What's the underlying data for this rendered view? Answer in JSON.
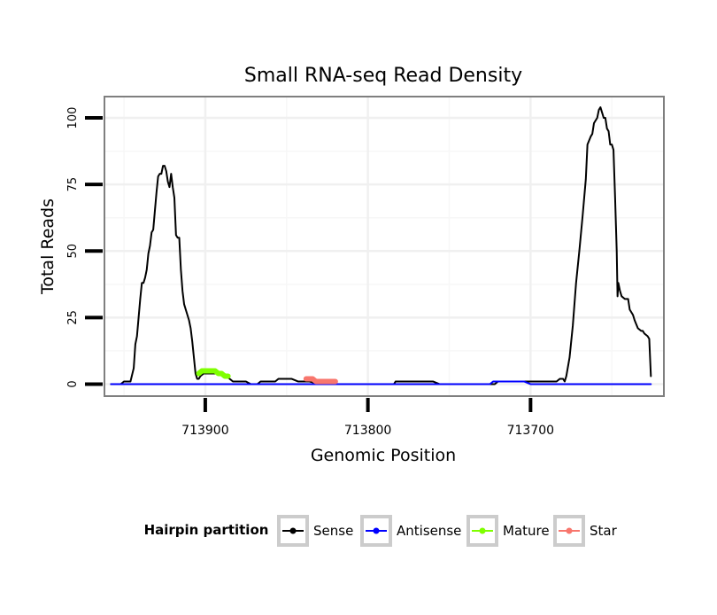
{
  "chart_data": {
    "type": "line",
    "title": "Small RNA-seq Read Density",
    "xlabel": "Genomic Position",
    "ylabel": "Total Reads",
    "xlim": [
      713962,
      713618
    ],
    "ylim": [
      -4.5,
      108
    ],
    "x_ticks": [
      713900,
      713800,
      713700
    ],
    "x_tick_labels": [
      "713900",
      "713800",
      "713700"
    ],
    "y_ticks": [
      0,
      25,
      50,
      75,
      100
    ],
    "y_tick_labels": [
      "0",
      "25",
      "50",
      "75",
      "100"
    ],
    "grid": true,
    "legend_title": "Hairpin partition",
    "legend_position": "bottom",
    "series": [
      {
        "name": "Sense",
        "color": "#000000",
        "points": [
          [
            713958,
            0
          ],
          [
            713952,
            0
          ],
          [
            713950,
            1
          ],
          [
            713946,
            1
          ],
          [
            713944,
            6
          ],
          [
            713943,
            15
          ],
          [
            713942,
            18
          ],
          [
            713941,
            25
          ],
          [
            713940,
            32
          ],
          [
            713939,
            38
          ],
          [
            713938,
            38
          ],
          [
            713937,
            40
          ],
          [
            713936,
            43
          ],
          [
            713935,
            49
          ],
          [
            713934,
            52
          ],
          [
            713933,
            57
          ],
          [
            713932,
            58
          ],
          [
            713931,
            65
          ],
          [
            713930,
            72
          ],
          [
            713929,
            78
          ],
          [
            713928,
            79
          ],
          [
            713927,
            79
          ],
          [
            713926,
            82
          ],
          [
            713925,
            82
          ],
          [
            713924,
            80
          ],
          [
            713923,
            76
          ],
          [
            713922,
            74
          ],
          [
            713921,
            79
          ],
          [
            713920,
            74
          ],
          [
            713919,
            70
          ],
          [
            713918,
            56
          ],
          [
            713917,
            55
          ],
          [
            713916,
            55
          ],
          [
            713915,
            43
          ],
          [
            713914,
            35
          ],
          [
            713913,
            30
          ],
          [
            713912,
            28
          ],
          [
            713911,
            26
          ],
          [
            713910,
            24
          ],
          [
            713909,
            21
          ],
          [
            713908,
            16
          ],
          [
            713907,
            10
          ],
          [
            713906,
            4
          ],
          [
            713905,
            2
          ],
          [
            713904,
            2
          ],
          [
            713903,
            3
          ],
          [
            713901,
            4
          ],
          [
            713893,
            4
          ],
          [
            713889,
            4
          ],
          [
            713887,
            3
          ],
          [
            713885,
            2
          ],
          [
            713883,
            1
          ],
          [
            713879,
            1
          ],
          [
            713875,
            1
          ],
          [
            713872,
            0
          ],
          [
            713868,
            0
          ],
          [
            713866,
            1
          ],
          [
            713857,
            1
          ],
          [
            713855,
            2
          ],
          [
            713847,
            2
          ],
          [
            713843,
            1
          ],
          [
            713836,
            1
          ],
          [
            713829,
            0
          ],
          [
            713813,
            0
          ],
          [
            713810,
            0
          ],
          [
            713800,
            0
          ],
          [
            713790,
            0
          ],
          [
            713784,
            0
          ],
          [
            713783,
            1
          ],
          [
            713760,
            1
          ],
          [
            713756,
            0
          ],
          [
            713722,
            0
          ],
          [
            713720,
            1
          ],
          [
            713704,
            1
          ],
          [
            713700,
            1
          ],
          [
            713684,
            1
          ],
          [
            713682,
            2
          ],
          [
            713680,
            2
          ],
          [
            713679,
            1
          ],
          [
            713678,
            3
          ],
          [
            713676,
            10
          ],
          [
            713674,
            22
          ],
          [
            713672,
            38
          ],
          [
            713670,
            50
          ],
          [
            713668,
            63
          ],
          [
            713666,
            77
          ],
          [
            713665,
            90
          ],
          [
            713663,
            93
          ],
          [
            713662,
            94
          ],
          [
            713661,
            98
          ],
          [
            713659,
            100
          ],
          [
            713658,
            103
          ],
          [
            713657,
            104
          ],
          [
            713656,
            102
          ],
          [
            713655,
            100
          ],
          [
            713654,
            100
          ],
          [
            713653,
            96
          ],
          [
            713652,
            95
          ],
          [
            713651,
            90
          ],
          [
            713650,
            90
          ],
          [
            713649,
            88
          ],
          [
            713648,
            70
          ],
          [
            713647,
            50
          ],
          [
            713646.5,
            33
          ],
          [
            713646,
            38
          ],
          [
            713645,
            35
          ],
          [
            713644,
            33
          ],
          [
            713642,
            32
          ],
          [
            713640,
            32
          ],
          [
            713639,
            28
          ],
          [
            713637,
            26
          ],
          [
            713636,
            24
          ],
          [
            713634,
            21
          ],
          [
            713632,
            20
          ],
          [
            713631,
            20
          ],
          [
            713630,
            19
          ],
          [
            713628,
            18
          ],
          [
            713627,
            17
          ],
          [
            713626,
            3
          ]
        ]
      },
      {
        "name": "Antisense",
        "color": "#0000ff",
        "points": [
          [
            713958,
            0
          ],
          [
            713915,
            0
          ],
          [
            713875,
            0
          ],
          [
            713860,
            0
          ],
          [
            713830,
            0
          ],
          [
            713820,
            0
          ],
          [
            713784,
            0
          ],
          [
            713783,
            0
          ],
          [
            713770,
            0
          ],
          [
            713756,
            0
          ],
          [
            713725,
            0
          ],
          [
            713723,
            1
          ],
          [
            713716,
            1
          ],
          [
            713704,
            1
          ],
          [
            713700,
            0
          ],
          [
            713626,
            0
          ]
        ]
      },
      {
        "name": "Mature",
        "color": "#7fff00",
        "points": [
          [
            713904,
            4
          ],
          [
            713902,
            5
          ],
          [
            713900,
            5
          ],
          [
            713898,
            5
          ],
          [
            713896,
            5
          ],
          [
            713894,
            5
          ],
          [
            713892,
            4
          ],
          [
            713890,
            4
          ],
          [
            713888,
            3
          ],
          [
            713886,
            3
          ]
        ]
      },
      {
        "name": "Star",
        "color": "#f8766d",
        "points": [
          [
            713838,
            2
          ],
          [
            713836,
            2
          ],
          [
            713834,
            2
          ],
          [
            713832,
            1
          ],
          [
            713830,
            1
          ],
          [
            713828,
            1
          ],
          [
            713826,
            1
          ],
          [
            713824,
            1
          ],
          [
            713822,
            1
          ],
          [
            713820,
            1
          ]
        ]
      }
    ]
  }
}
